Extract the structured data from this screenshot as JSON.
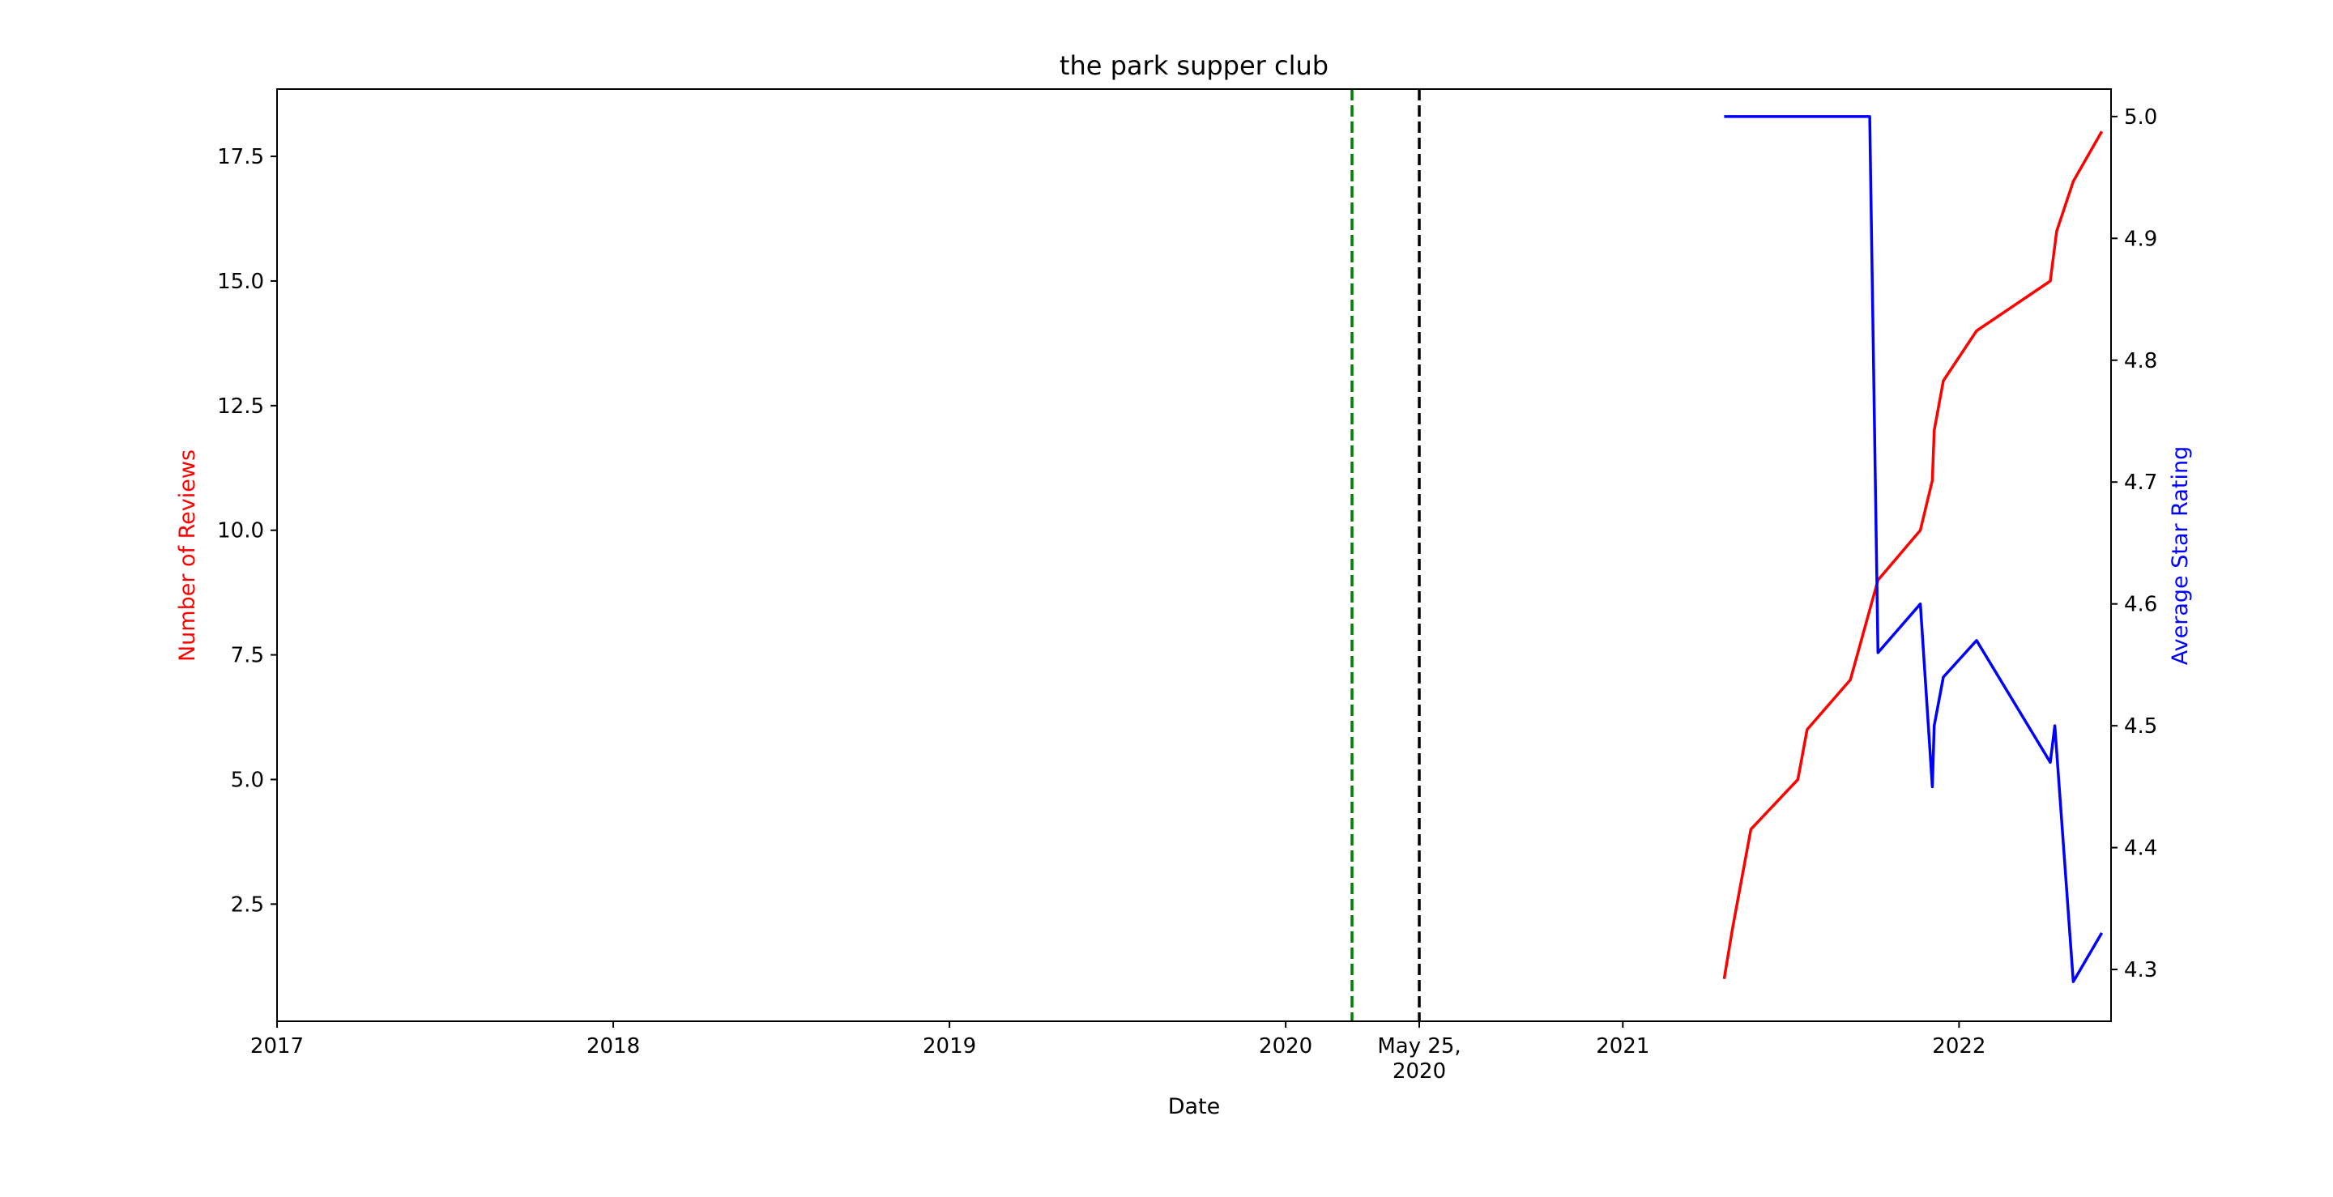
{
  "chart_data": {
    "title": "the park supper club",
    "xlabel": "Date",
    "ylabel_left": "Number of Reviews",
    "ylabel_right": "Average Star Rating",
    "colors": {
      "reviews": "#ff0000",
      "rating": "#0000ff",
      "green_line": "#008000",
      "black_line": "#000000"
    },
    "x_range": [
      "2017-01-01",
      "2022-06-15"
    ],
    "y_left_range": [
      0.15,
      18.85
    ],
    "y_right_range": [
      4.2575,
      5.0225
    ],
    "x_ticks": [
      {
        "date": "2017-01-01",
        "label": "2017"
      },
      {
        "date": "2018-01-01",
        "label": "2018"
      },
      {
        "date": "2019-01-01",
        "label": "2019"
      },
      {
        "date": "2020-01-01",
        "label": "2020"
      },
      {
        "date": "2020-05-25",
        "label": "May 25,\n2020"
      },
      {
        "date": "2021-01-01",
        "label": "2021"
      },
      {
        "date": "2022-01-01",
        "label": "2022"
      }
    ],
    "y_left_ticks": [
      2.5,
      5.0,
      7.5,
      10.0,
      12.5,
      15.0,
      17.5
    ],
    "y_right_ticks": [
      4.3,
      4.4,
      4.5,
      4.6,
      4.7,
      4.8,
      4.9,
      5.0
    ],
    "vlines": [
      {
        "date": "2020-03-13",
        "color": "#008000",
        "style": "dashed"
      },
      {
        "date": "2020-05-25",
        "color": "#000000",
        "style": "dashed"
      }
    ],
    "series": [
      {
        "axis": "left",
        "color": "#ff0000",
        "points": [
          [
            "2021-04-21",
            1
          ],
          [
            "2021-04-30",
            2
          ],
          [
            "2021-05-20",
            4
          ],
          [
            "2021-07-10",
            5
          ],
          [
            "2021-07-20",
            6
          ],
          [
            "2021-09-05",
            7
          ],
          [
            "2021-10-05",
            9
          ],
          [
            "2021-11-20",
            10
          ],
          [
            "2021-12-03",
            11
          ],
          [
            "2021-12-05",
            12
          ],
          [
            "2021-12-15",
            13
          ],
          [
            "2022-01-20",
            14
          ],
          [
            "2022-04-10",
            15
          ],
          [
            "2022-04-17",
            16
          ],
          [
            "2022-05-05",
            17
          ],
          [
            "2022-06-05",
            18
          ]
        ]
      },
      {
        "axis": "right",
        "color": "#0000ff",
        "points": [
          [
            "2021-04-21",
            5.0
          ],
          [
            "2021-09-26",
            5.0
          ],
          [
            "2021-10-05",
            4.56
          ],
          [
            "2021-11-20",
            4.6
          ],
          [
            "2021-12-03",
            4.45
          ],
          [
            "2021-12-05",
            4.5
          ],
          [
            "2021-12-15",
            4.54
          ],
          [
            "2022-01-20",
            4.57
          ],
          [
            "2022-04-10",
            4.47
          ],
          [
            "2022-04-15",
            4.5
          ],
          [
            "2022-05-05",
            4.29
          ],
          [
            "2022-06-05",
            4.33
          ]
        ]
      }
    ]
  }
}
